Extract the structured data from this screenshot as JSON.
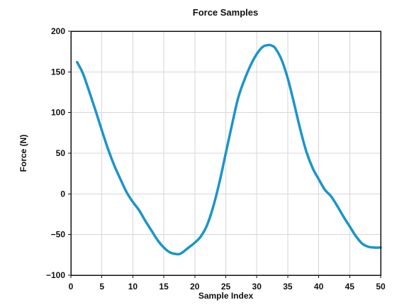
{
  "chart_data": {
    "type": "line",
    "title": "Force Samples",
    "xlabel": "Sample Index",
    "ylabel": "Force (N)",
    "xlim": [
      0,
      50
    ],
    "ylim": [
      -100,
      200
    ],
    "x_ticks": [
      0,
      5,
      10,
      15,
      20,
      25,
      30,
      35,
      40,
      45,
      50
    ],
    "y_ticks": [
      -100,
      -50,
      0,
      50,
      100,
      150,
      200
    ],
    "x_tick_labels": [
      "0",
      "5",
      "10",
      "15",
      "20",
      "25",
      "30",
      "35",
      "40",
      "45",
      "50"
    ],
    "y_tick_labels": [
      "−100",
      "−50",
      "0",
      "50",
      "100",
      "150",
      "200"
    ],
    "grid": true,
    "line_color": "#1b95c9",
    "series": [
      {
        "x": [
          1,
          1.5,
          2,
          3,
          4,
          5,
          6,
          7,
          8,
          9,
          10,
          11,
          12,
          13,
          14,
          15,
          16,
          17,
          17.5,
          18,
          19,
          20,
          21,
          22,
          23,
          24,
          25,
          26,
          27,
          28,
          29,
          30,
          31,
          32,
          32.5,
          33,
          34,
          35,
          36,
          37,
          38,
          39,
          40,
          41,
          42,
          43,
          44,
          45,
          46,
          47,
          48,
          49,
          50
        ],
        "y": [
          162,
          155,
          147,
          125,
          102,
          78,
          55,
          35,
          18,
          2,
          -10,
          -20,
          -33,
          -45,
          -57,
          -66,
          -72,
          -74,
          -74,
          -72,
          -66,
          -60,
          -52,
          -38,
          -15,
          15,
          50,
          85,
          118,
          140,
          158,
          172,
          181,
          183,
          182,
          179,
          165,
          142,
          112,
          80,
          52,
          32,
          18,
          5,
          -3,
          -15,
          -28,
          -40,
          -52,
          -61,
          -65,
          -66,
          -66
        ]
      }
    ]
  }
}
